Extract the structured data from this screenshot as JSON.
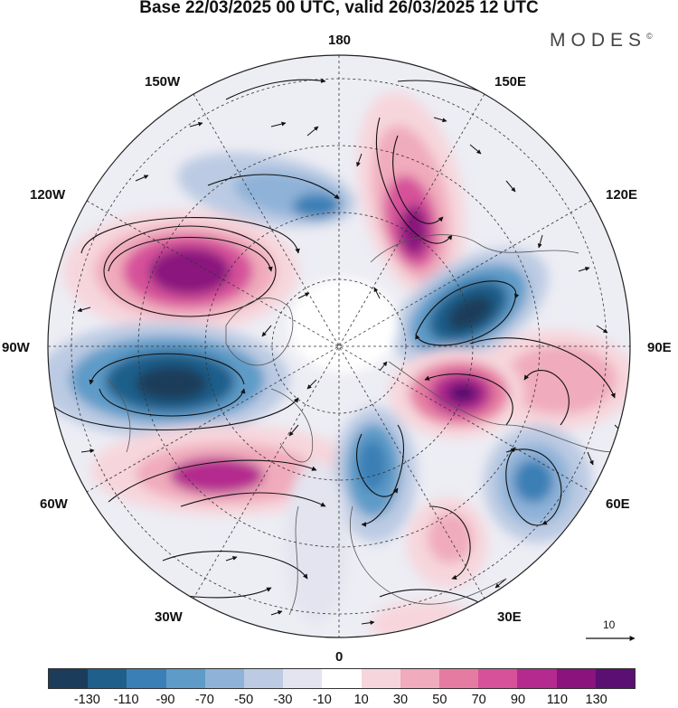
{
  "title": "Base 22/03/2025 00 UTC, valid 26/03/2025 12 UTC",
  "brand": "MODES",
  "brand_mark": "©",
  "longitude_labels": {
    "lon_180": "180",
    "lon_150w": "150W",
    "lon_150e": "150E",
    "lon_120w": "120W",
    "lon_120e": "120E",
    "lon_90w": "90W",
    "lon_90e": "90E",
    "lon_60w": "60W",
    "lon_60e": "60E",
    "lon_30w": "30W",
    "lon_30e": "30E",
    "lon_0": "0"
  },
  "reference_vector": {
    "label": "10"
  },
  "colorbar": {
    "colors": [
      "#1b3c5a",
      "#1f5f8b",
      "#3a7fb5",
      "#5e9bc8",
      "#8fb2d8",
      "#bccbe3",
      "#e3e4ef",
      "#ffffff",
      "#f6d6dc",
      "#f0abbc",
      "#e67ba1",
      "#d6519a",
      "#b42a8e",
      "#8a137e",
      "#5c0f72"
    ],
    "ticks": [
      "-130",
      "-110",
      "-90",
      "-70",
      "-50",
      "-30",
      "-10",
      "10",
      "30",
      "50",
      "70",
      "90",
      "110",
      "130"
    ]
  },
  "anomaly_centers": [
    {
      "name": "north-pacific-positive",
      "sign": "positive",
      "strength": "strong"
    },
    {
      "name": "canada-negative",
      "sign": "negative",
      "strength": "strong"
    },
    {
      "name": "atlantic-positive",
      "sign": "positive",
      "strength": "moderate"
    },
    {
      "name": "arctic-aleutian-negative",
      "sign": "negative",
      "strength": "moderate"
    },
    {
      "name": "east-siberia-positive",
      "sign": "positive",
      "strength": "strong"
    },
    {
      "name": "siberia-negative",
      "sign": "negative",
      "strength": "strong"
    },
    {
      "name": "central-asia-positive",
      "sign": "positive",
      "strength": "strong"
    },
    {
      "name": "east-asia-positive",
      "sign": "positive",
      "strength": "moderate"
    },
    {
      "name": "west-asia-negative",
      "sign": "negative",
      "strength": "moderate"
    },
    {
      "name": "scandinavia-negative",
      "sign": "negative",
      "strength": "moderate"
    },
    {
      "name": "europe-positive",
      "sign": "positive",
      "strength": "weak"
    },
    {
      "name": "mediterranean-positive",
      "sign": "positive",
      "strength": "weak"
    }
  ]
}
